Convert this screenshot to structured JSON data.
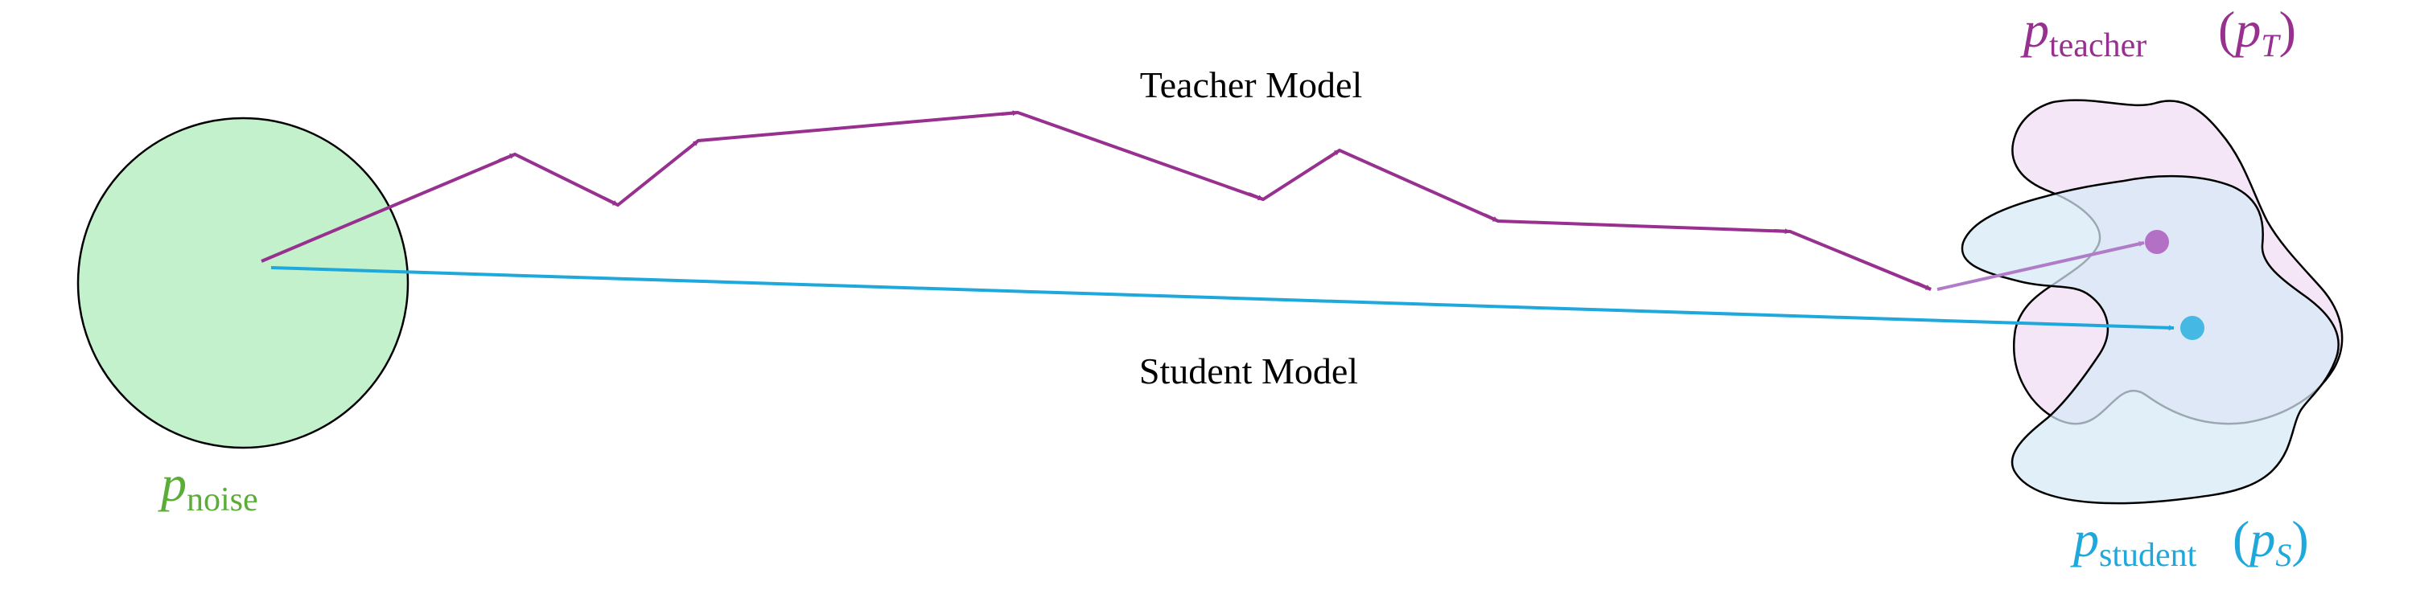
{
  "colors": {
    "teacher": "#97308F",
    "student": "#1EA8DC",
    "noise_fill": "#C2F1CC",
    "noise_text": "#5AAE38",
    "teacher_fill": "#F2E0F6",
    "student_fill": "#D6E9F5",
    "outline": "#000000"
  },
  "labels": {
    "teacher_model": "Teacher Model",
    "student_model": "Student Model"
  },
  "distributions": {
    "noise": {
      "symbol": "p",
      "subscript": "noise"
    },
    "teacher": {
      "symbol": "p",
      "subscript": "teacher",
      "short_symbol": "p",
      "short_subscript": "T"
    },
    "student": {
      "symbol": "p",
      "subscript": "student",
      "short_symbol": "p",
      "short_subscript": "S"
    }
  }
}
